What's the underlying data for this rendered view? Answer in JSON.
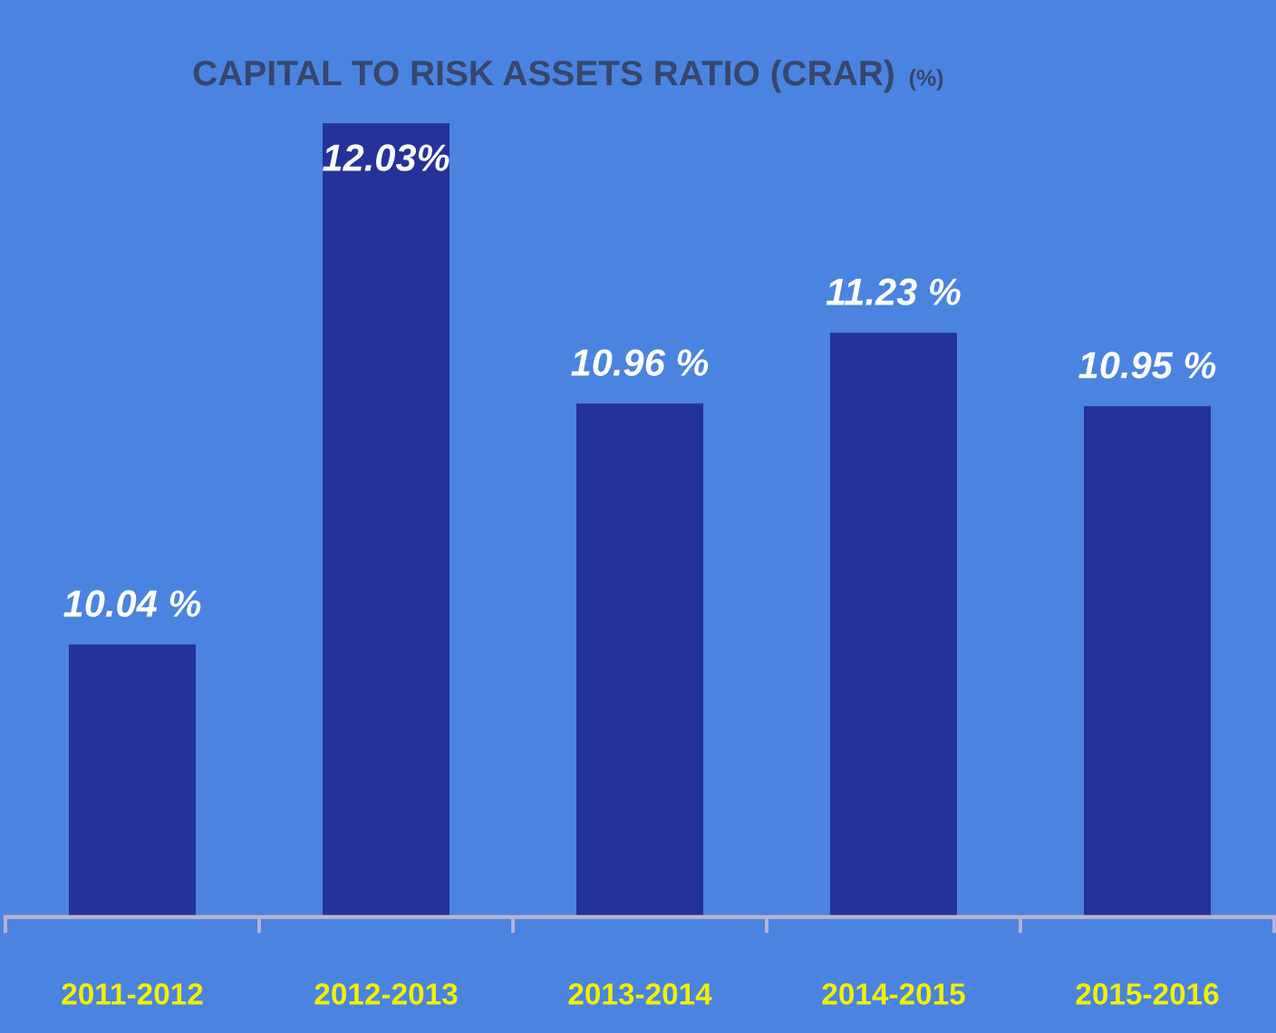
{
  "chart_data": {
    "type": "bar",
    "title": "CAPITAL TO RISK ASSETS RATIO (CRAR)",
    "subtitle": "(%)",
    "categories": [
      "2011-2012",
      "2012-2013",
      "2013-2014",
      "2014-2015",
      "2015-2016"
    ],
    "values": [
      10.04,
      12.03,
      10.96,
      11.23,
      10.95
    ],
    "value_labels": [
      "10.04 %",
      "12.03%",
      "10.96 %",
      "11.23 %",
      "10.95 %"
    ],
    "color": "#24329a",
    "ylim": [
      9,
      12.03
    ],
    "tick_labels": "x"
  }
}
